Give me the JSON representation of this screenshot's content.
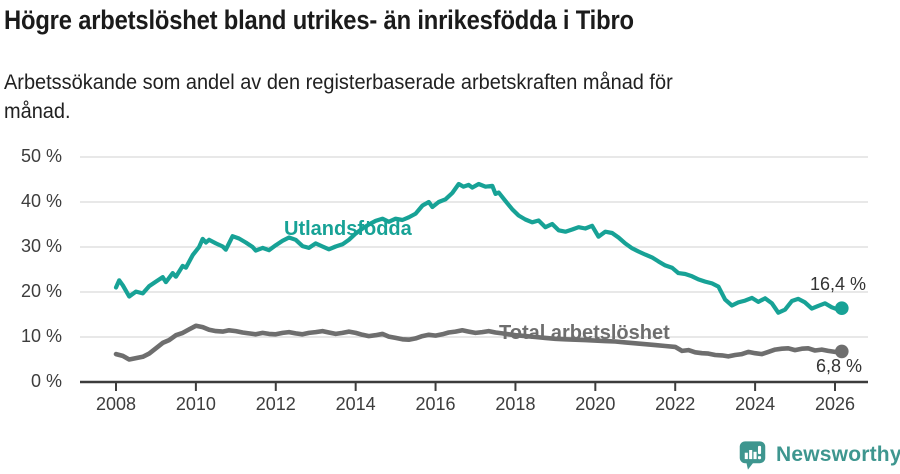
{
  "header": {
    "title": "Högre arbetslöshet bland utrikes- än inrikesfödda i Tibro",
    "subtitle_lines": [
      "Arbetssökande som andel av den registerbaserade arbetskraften månad för",
      "månad."
    ]
  },
  "chart_data": {
    "type": "line",
    "title": "Högre arbetslöshet bland utrikes- än inrikesfödda i Tibro",
    "subtitle": "Arbetssökande som andel av den registerbaserade arbetskraften månad för månad.",
    "unit": "%",
    "grid": true,
    "legend_position": "inline-labels",
    "x_axis": {
      "tick_labels": [
        "2008",
        "2010",
        "2012",
        "2014",
        "2016",
        "2018",
        "2020",
        "2022",
        "2024",
        "2026"
      ],
      "tick_values": [
        2008,
        2010,
        2012,
        2014,
        2016,
        2018,
        2020,
        2022,
        2024,
        2026
      ],
      "range_years": [
        2008,
        2026.2
      ]
    },
    "y_axis": {
      "tick_labels": [
        "0 %",
        "10 %",
        "20 %",
        "30 %",
        "40 %",
        "50 %"
      ],
      "tick_values": [
        0,
        10,
        20,
        30,
        40,
        50
      ],
      "range": [
        0,
        50
      ]
    },
    "series": [
      {
        "id": "utlandsfodda",
        "name": "Utlandsfödda",
        "color": "#17a296",
        "line_width": 4.2,
        "end_label": "16,4 %",
        "end_value": 16.4,
        "points": [
          [
            2008.0,
            21.0
          ],
          [
            2008.08,
            22.6
          ],
          [
            2008.17,
            21.5
          ],
          [
            2008.33,
            19.0
          ],
          [
            2008.5,
            20.1
          ],
          [
            2008.67,
            19.7
          ],
          [
            2008.83,
            21.3
          ],
          [
            2009.0,
            22.3
          ],
          [
            2009.17,
            23.3
          ],
          [
            2009.25,
            22.2
          ],
          [
            2009.42,
            24.2
          ],
          [
            2009.5,
            23.4
          ],
          [
            2009.67,
            25.8
          ],
          [
            2009.75,
            25.4
          ],
          [
            2009.92,
            28.2
          ],
          [
            2010.08,
            30.0
          ],
          [
            2010.17,
            31.8
          ],
          [
            2010.25,
            31.0
          ],
          [
            2010.33,
            31.6
          ],
          [
            2010.5,
            30.8
          ],
          [
            2010.67,
            30.1
          ],
          [
            2010.75,
            29.4
          ],
          [
            2010.92,
            32.4
          ],
          [
            2011.08,
            31.9
          ],
          [
            2011.25,
            31.0
          ],
          [
            2011.42,
            30.0
          ],
          [
            2011.5,
            29.2
          ],
          [
            2011.67,
            29.8
          ],
          [
            2011.83,
            29.3
          ],
          [
            2012.0,
            30.4
          ],
          [
            2012.17,
            31.4
          ],
          [
            2012.33,
            32.1
          ],
          [
            2012.5,
            31.6
          ],
          [
            2012.67,
            30.2
          ],
          [
            2012.83,
            29.8
          ],
          [
            2013.0,
            30.8
          ],
          [
            2013.17,
            30.1
          ],
          [
            2013.33,
            29.5
          ],
          [
            2013.5,
            30.1
          ],
          [
            2013.67,
            30.6
          ],
          [
            2013.83,
            31.6
          ],
          [
            2014.0,
            33.0
          ],
          [
            2014.17,
            34.1
          ],
          [
            2014.33,
            35.0
          ],
          [
            2014.5,
            35.8
          ],
          [
            2014.67,
            36.3
          ],
          [
            2014.83,
            35.6
          ],
          [
            2015.0,
            36.3
          ],
          [
            2015.17,
            36.0
          ],
          [
            2015.33,
            36.6
          ],
          [
            2015.5,
            37.4
          ],
          [
            2015.67,
            39.2
          ],
          [
            2015.83,
            40.0
          ],
          [
            2015.92,
            38.9
          ],
          [
            2016.08,
            40.0
          ],
          [
            2016.25,
            40.6
          ],
          [
            2016.42,
            42.0
          ],
          [
            2016.58,
            44.0
          ],
          [
            2016.7,
            43.4
          ],
          [
            2016.83,
            43.8
          ],
          [
            2016.92,
            43.2
          ],
          [
            2017.08,
            44.0
          ],
          [
            2017.25,
            43.4
          ],
          [
            2017.42,
            43.6
          ],
          [
            2017.5,
            41.8
          ],
          [
            2017.58,
            42.1
          ],
          [
            2017.75,
            40.2
          ],
          [
            2017.92,
            38.4
          ],
          [
            2018.08,
            37.0
          ],
          [
            2018.25,
            36.1
          ],
          [
            2018.42,
            35.5
          ],
          [
            2018.58,
            35.9
          ],
          [
            2018.75,
            34.4
          ],
          [
            2018.92,
            35.1
          ],
          [
            2019.08,
            33.7
          ],
          [
            2019.25,
            33.4
          ],
          [
            2019.42,
            33.9
          ],
          [
            2019.58,
            34.4
          ],
          [
            2019.75,
            34.1
          ],
          [
            2019.92,
            34.7
          ],
          [
            2020.08,
            32.3
          ],
          [
            2020.25,
            33.4
          ],
          [
            2020.42,
            33.1
          ],
          [
            2020.58,
            32.1
          ],
          [
            2020.75,
            30.8
          ],
          [
            2020.92,
            29.7
          ],
          [
            2021.08,
            29.0
          ],
          [
            2021.25,
            28.3
          ],
          [
            2021.42,
            27.7
          ],
          [
            2021.58,
            26.8
          ],
          [
            2021.75,
            25.9
          ],
          [
            2021.92,
            25.4
          ],
          [
            2022.08,
            24.2
          ],
          [
            2022.25,
            24.0
          ],
          [
            2022.42,
            23.5
          ],
          [
            2022.58,
            22.8
          ],
          [
            2022.75,
            22.3
          ],
          [
            2022.92,
            21.9
          ],
          [
            2023.08,
            21.2
          ],
          [
            2023.25,
            18.3
          ],
          [
            2023.42,
            17.0
          ],
          [
            2023.58,
            17.7
          ],
          [
            2023.75,
            18.1
          ],
          [
            2023.92,
            18.7
          ],
          [
            2024.08,
            17.8
          ],
          [
            2024.25,
            18.6
          ],
          [
            2024.42,
            17.5
          ],
          [
            2024.58,
            15.4
          ],
          [
            2024.75,
            16.1
          ],
          [
            2024.92,
            18.0
          ],
          [
            2025.08,
            18.5
          ],
          [
            2025.25,
            17.7
          ],
          [
            2025.42,
            16.3
          ],
          [
            2025.58,
            16.9
          ],
          [
            2025.75,
            17.5
          ],
          [
            2025.92,
            16.6
          ],
          [
            2026.08,
            16.1
          ],
          [
            2026.17,
            16.4
          ]
        ]
      },
      {
        "id": "total",
        "name": "Total arbetslöshet",
        "color": "#6e6e6e",
        "line_width": 4.6,
        "end_label": "6,8 %",
        "end_value": 6.8,
        "points": [
          [
            2008.0,
            6.2
          ],
          [
            2008.17,
            5.8
          ],
          [
            2008.33,
            5.0
          ],
          [
            2008.5,
            5.3
          ],
          [
            2008.67,
            5.6
          ],
          [
            2008.83,
            6.3
          ],
          [
            2009.0,
            7.5
          ],
          [
            2009.17,
            8.7
          ],
          [
            2009.33,
            9.3
          ],
          [
            2009.5,
            10.4
          ],
          [
            2009.67,
            10.9
          ],
          [
            2009.83,
            11.7
          ],
          [
            2010.0,
            12.5
          ],
          [
            2010.17,
            12.2
          ],
          [
            2010.33,
            11.6
          ],
          [
            2010.5,
            11.3
          ],
          [
            2010.67,
            11.2
          ],
          [
            2010.83,
            11.5
          ],
          [
            2011.0,
            11.3
          ],
          [
            2011.17,
            11.0
          ],
          [
            2011.33,
            10.8
          ],
          [
            2011.5,
            10.6
          ],
          [
            2011.67,
            10.9
          ],
          [
            2011.83,
            10.7
          ],
          [
            2012.0,
            10.6
          ],
          [
            2012.17,
            10.9
          ],
          [
            2012.33,
            11.1
          ],
          [
            2012.5,
            10.8
          ],
          [
            2012.67,
            10.6
          ],
          [
            2012.83,
            10.9
          ],
          [
            2013.0,
            11.1
          ],
          [
            2013.17,
            11.3
          ],
          [
            2013.33,
            11.0
          ],
          [
            2013.5,
            10.7
          ],
          [
            2013.67,
            10.9
          ],
          [
            2013.83,
            11.2
          ],
          [
            2014.0,
            10.9
          ],
          [
            2014.17,
            10.5
          ],
          [
            2014.33,
            10.2
          ],
          [
            2014.5,
            10.4
          ],
          [
            2014.67,
            10.7
          ],
          [
            2014.83,
            10.1
          ],
          [
            2015.0,
            9.8
          ],
          [
            2015.17,
            9.5
          ],
          [
            2015.33,
            9.4
          ],
          [
            2015.5,
            9.7
          ],
          [
            2015.67,
            10.2
          ],
          [
            2015.83,
            10.5
          ],
          [
            2016.0,
            10.3
          ],
          [
            2016.17,
            10.6
          ],
          [
            2016.33,
            11.0
          ],
          [
            2016.5,
            11.2
          ],
          [
            2016.67,
            11.5
          ],
          [
            2016.83,
            11.2
          ],
          [
            2017.0,
            10.9
          ],
          [
            2017.17,
            11.1
          ],
          [
            2017.33,
            11.3
          ],
          [
            2017.5,
            11.0
          ],
          [
            2017.67,
            10.8
          ],
          [
            2017.83,
            10.6
          ],
          [
            2018.0,
            10.4
          ],
          [
            2018.25,
            10.2
          ],
          [
            2018.5,
            10.0
          ],
          [
            2018.75,
            9.8
          ],
          [
            2019.0,
            9.6
          ],
          [
            2019.25,
            9.5
          ],
          [
            2019.5,
            9.4
          ],
          [
            2019.75,
            9.3
          ],
          [
            2020.0,
            9.2
          ],
          [
            2020.25,
            9.1
          ],
          [
            2020.5,
            9.0
          ],
          [
            2020.75,
            8.8
          ],
          [
            2021.0,
            8.6
          ],
          [
            2021.25,
            8.4
          ],
          [
            2021.5,
            8.2
          ],
          [
            2021.75,
            8.0
          ],
          [
            2022.0,
            7.8
          ],
          [
            2022.17,
            6.9
          ],
          [
            2022.33,
            7.1
          ],
          [
            2022.5,
            6.6
          ],
          [
            2022.67,
            6.4
          ],
          [
            2022.83,
            6.3
          ],
          [
            2023.0,
            6.0
          ],
          [
            2023.17,
            5.9
          ],
          [
            2023.33,
            5.7
          ],
          [
            2023.5,
            6.0
          ],
          [
            2023.67,
            6.2
          ],
          [
            2023.83,
            6.7
          ],
          [
            2024.0,
            6.4
          ],
          [
            2024.17,
            6.2
          ],
          [
            2024.33,
            6.7
          ],
          [
            2024.5,
            7.2
          ],
          [
            2024.67,
            7.4
          ],
          [
            2024.83,
            7.5
          ],
          [
            2025.0,
            7.1
          ],
          [
            2025.17,
            7.4
          ],
          [
            2025.33,
            7.5
          ],
          [
            2025.5,
            7.0
          ],
          [
            2025.67,
            7.2
          ],
          [
            2025.83,
            6.9
          ],
          [
            2026.0,
            6.7
          ],
          [
            2026.17,
            6.8
          ]
        ]
      }
    ]
  },
  "branding": {
    "name": "Newsworthy",
    "color": "#3e968f",
    "icon": "newsworthy-bubble-chart-icon"
  }
}
